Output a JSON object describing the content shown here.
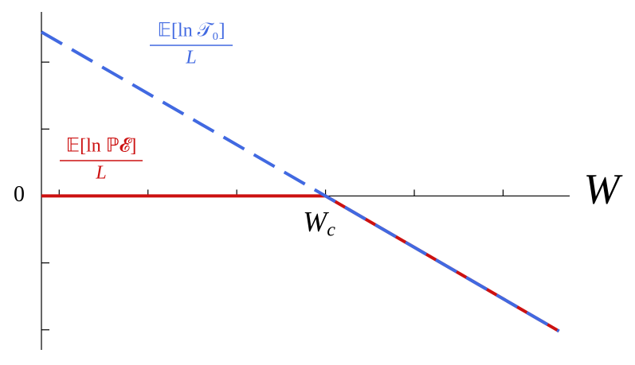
{
  "chart_data": {
    "type": "line",
    "x_label": "W",
    "x": [
      0.8,
      4,
      6.63
    ],
    "series": [
      {
        "name": "𝔼[ln ℙ𝓔]",
        "denominator": "L",
        "color": "#cc1111",
        "dashed": false,
        "values": [
          0,
          0,
          -2.02
        ]
      },
      {
        "name": "𝔼[ln 𝒯₀]",
        "denominator": "L",
        "color": "#4169e1",
        "dashed": true,
        "values": [
          2.45,
          0,
          -2.02
        ]
      }
    ],
    "annotation": {
      "text": "W",
      "subscript": "c",
      "x": 4
    },
    "xlim": [
      0.8,
      6.75
    ],
    "xticks": [
      1,
      2,
      3,
      4,
      5,
      6
    ],
    "ylim": [
      -2.3,
      2.75
    ],
    "yticks": [
      -2,
      -1,
      {
        "value": 0,
        "label": "0"
      },
      1,
      2
    ]
  }
}
